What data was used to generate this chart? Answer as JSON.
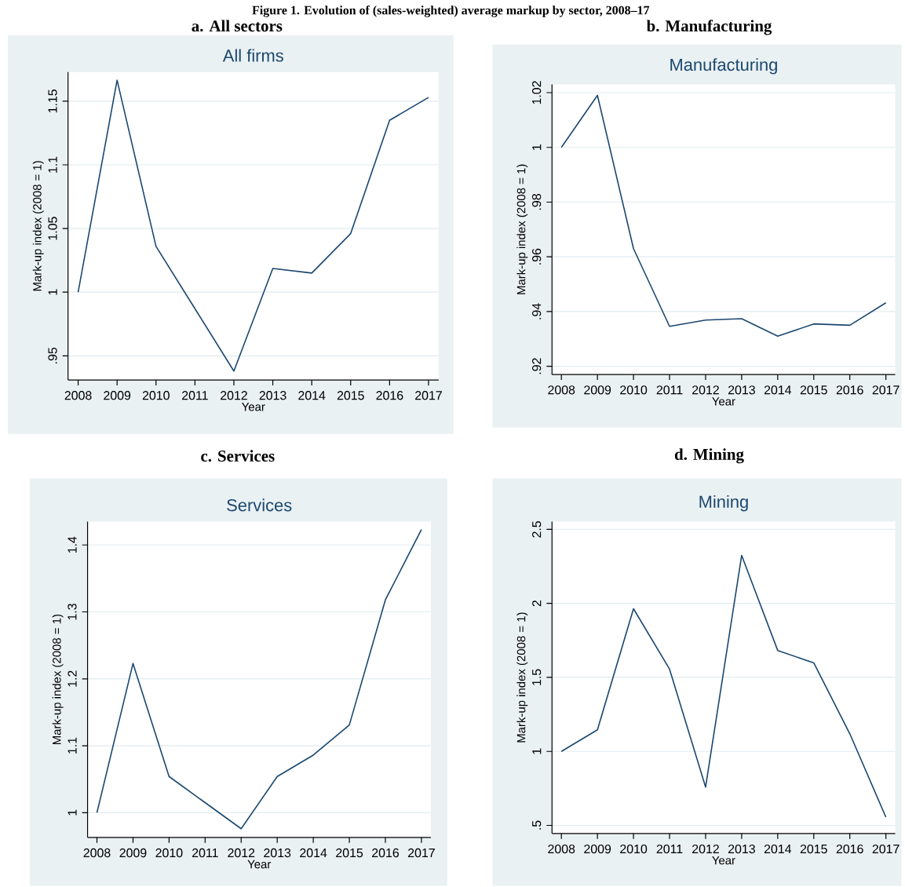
{
  "chart_data": [
    {
      "type": "line",
      "title": "a. All sectors",
      "subtitle": "All firms",
      "xlabel": "Year",
      "ylabel": "Mark-up index (2008 = 1)",
      "annotations": [
        "Figure 1. Evolution of (sales-weighted) average markup by sector, 2008–17"
      ],
      "categories": [
        "2008",
        "2009",
        "2010",
        "2011",
        "2012",
        "2013",
        "2014",
        "2015",
        "2016",
        "2017"
      ],
      "values": [
        1.0,
        1.1665,
        1.036,
        0.987,
        0.938,
        1.0186,
        1.015,
        1.046,
        1.135,
        1.153
      ],
      "color": "#1a476f",
      "ylim": [
        0.931,
        1.173
      ],
      "yticks": [
        {
          "value": 0.95,
          "label": ".95"
        },
        1,
        1.05,
        1.1,
        1.15
      ],
      "grid": "y"
    },
    {
      "type": "line",
      "title": "b. Manufacturing",
      "subtitle": "Manufacturing",
      "xlabel": "Year",
      "ylabel": "Mark-up index (2008 = 1)",
      "categories": [
        "2008",
        "2009",
        "2010",
        "2011",
        "2012",
        "2013",
        "2014",
        "2015",
        "2016",
        "2017"
      ],
      "values": [
        1.0,
        1.019,
        0.963,
        0.9346,
        0.9369,
        0.9374,
        0.931,
        0.9355,
        0.935,
        0.9432
      ],
      "color": "#1a476f",
      "ylim": [
        0.917,
        1.023
      ],
      "yticks": [
        {
          "value": 0.92,
          "label": ".92"
        },
        {
          "value": 0.94,
          "label": ".94"
        },
        {
          "value": 0.96,
          "label": ".96"
        },
        {
          "value": 0.98,
          "label": ".98"
        },
        1,
        1.02
      ],
      "grid": "y"
    },
    {
      "type": "line",
      "title": "c. Services",
      "subtitle": "Services",
      "xlabel": "Year",
      "ylabel": "Mark-up index (2008 = 1)",
      "categories": [
        "2008",
        "2009",
        "2010",
        "2011",
        "2012",
        "2013",
        "2014",
        "2015",
        "2016",
        "2017"
      ],
      "values": [
        1.0,
        1.223,
        1.054,
        1.015,
        0.976,
        1.054,
        1.086,
        1.131,
        1.318,
        1.423
      ],
      "color": "#1a476f",
      "ylim": [
        0.963,
        1.435
      ],
      "yticks": [
        1,
        1.1,
        1.2,
        1.3,
        1.4
      ],
      "grid": "y"
    },
    {
      "type": "line",
      "title": "d. Mining",
      "subtitle": "Mining",
      "xlabel": "Year",
      "ylabel": "Mark-up index (2008 = 1)",
      "categories": [
        "2008",
        "2009",
        "2010",
        "2011",
        "2012",
        "2013",
        "2014",
        "2015",
        "2016",
        "2017"
      ],
      "values": [
        1.0,
        1.146,
        1.964,
        1.556,
        0.759,
        2.324,
        1.682,
        1.598,
        1.119,
        0.556
      ],
      "color": "#1a476f",
      "ylim": [
        0.445,
        2.553
      ],
      "yticks": [
        {
          "value": 0.5,
          "label": ".5"
        },
        1,
        1.5,
        2,
        2.5
      ],
      "grid": "y"
    }
  ]
}
